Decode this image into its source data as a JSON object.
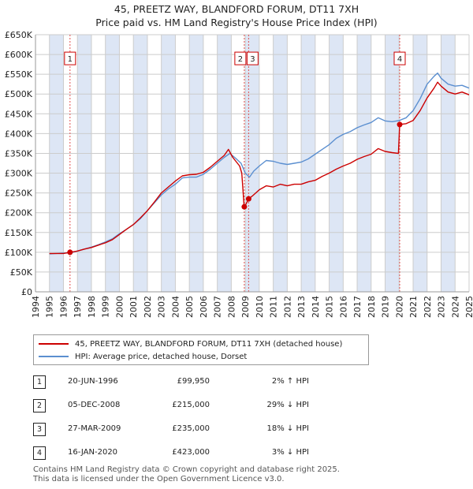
{
  "title": {
    "line1": "45, PREETZ WAY, BLANDFORD FORUM, DT11 7XH",
    "line2": "Price paid vs. HM Land Registry's House Price Index (HPI)"
  },
  "colors": {
    "property": "#cc0000",
    "hpi": "#5b8fd0",
    "marker_line": "#e05050",
    "shade": "#dde6f5",
    "grid": "#cccccc"
  },
  "chart_data": {
    "type": "line",
    "title": "45, PREETZ WAY, BLANDFORD FORUM, DT11 7XH - Price paid vs. HM Land Registry's House Price Index (HPI)",
    "xlabel": "",
    "ylabel": "",
    "xlim": [
      1994,
      2025
    ],
    "ylim": [
      0,
      650000
    ],
    "x_ticks": [
      "1994",
      "1995",
      "1996",
      "1997",
      "1998",
      "1999",
      "2000",
      "2001",
      "2002",
      "2003",
      "2004",
      "2005",
      "2006",
      "2007",
      "2008",
      "2009",
      "2010",
      "2011",
      "2012",
      "2013",
      "2014",
      "2015",
      "2016",
      "2017",
      "2018",
      "2019",
      "2020",
      "2021",
      "2022",
      "2023",
      "2024",
      "2025"
    ],
    "y_ticks": [
      {
        "value": 0,
        "label": "£0"
      },
      {
        "value": 50000,
        "label": "£50K"
      },
      {
        "value": 100000,
        "label": "£100K"
      },
      {
        "value": 150000,
        "label": "£150K"
      },
      {
        "value": 200000,
        "label": "£200K"
      },
      {
        "value": 250000,
        "label": "£250K"
      },
      {
        "value": 300000,
        "label": "£300K"
      },
      {
        "value": 350000,
        "label": "£350K"
      },
      {
        "value": 400000,
        "label": "£400K"
      },
      {
        "value": 450000,
        "label": "£450K"
      },
      {
        "value": 500000,
        "label": "£500K"
      },
      {
        "value": 550000,
        "label": "£550K"
      },
      {
        "value": 600000,
        "label": "£600K"
      },
      {
        "value": 650000,
        "label": "£650K"
      }
    ],
    "grid": true,
    "shaded_years": [
      1995,
      1997,
      1999,
      2001,
      2003,
      2005,
      2007,
      2009,
      2011,
      2013,
      2015,
      2017,
      2019,
      2021,
      2023
    ],
    "series": [
      {
        "name": "45, PREETZ WAY, BLANDFORD FORUM, DT11 7XH (detached house)",
        "color": "#cc0000",
        "points": [
          [
            1995.0,
            97000
          ],
          [
            1996.0,
            97000
          ],
          [
            1996.47,
            99950
          ],
          [
            1997.0,
            103000
          ],
          [
            1997.5,
            108000
          ],
          [
            1998.0,
            112000
          ],
          [
            1998.5,
            118000
          ],
          [
            1999.0,
            124000
          ],
          [
            1999.5,
            132000
          ],
          [
            2000.0,
            145000
          ],
          [
            2000.5,
            158000
          ],
          [
            2001.0,
            170000
          ],
          [
            2001.5,
            187000
          ],
          [
            2002.0,
            205000
          ],
          [
            2002.5,
            227000
          ],
          [
            2003.0,
            250000
          ],
          [
            2003.5,
            265000
          ],
          [
            2004.0,
            280000
          ],
          [
            2004.5,
            293000
          ],
          [
            2005.0,
            296000
          ],
          [
            2005.5,
            297000
          ],
          [
            2006.0,
            302000
          ],
          [
            2006.5,
            315000
          ],
          [
            2007.0,
            330000
          ],
          [
            2007.5,
            345000
          ],
          [
            2007.8,
            360000
          ],
          [
            2008.1,
            340000
          ],
          [
            2008.6,
            318000
          ],
          [
            2008.75,
            300000
          ],
          [
            2008.92,
            215000
          ],
          [
            2009.0,
            218000
          ],
          [
            2009.24,
            235000
          ],
          [
            2009.5,
            242000
          ],
          [
            2010.0,
            258000
          ],
          [
            2010.5,
            268000
          ],
          [
            2011.0,
            265000
          ],
          [
            2011.5,
            272000
          ],
          [
            2012.0,
            268000
          ],
          [
            2012.5,
            272000
          ],
          [
            2013.0,
            272000
          ],
          [
            2013.5,
            278000
          ],
          [
            2014.0,
            282000
          ],
          [
            2014.5,
            292000
          ],
          [
            2015.0,
            300000
          ],
          [
            2015.5,
            310000
          ],
          [
            2016.0,
            318000
          ],
          [
            2016.5,
            325000
          ],
          [
            2017.0,
            335000
          ],
          [
            2017.5,
            342000
          ],
          [
            2018.0,
            348000
          ],
          [
            2018.5,
            362000
          ],
          [
            2019.0,
            355000
          ],
          [
            2019.5,
            352000
          ],
          [
            2019.95,
            350000
          ],
          [
            2020.04,
            423000
          ],
          [
            2020.5,
            425000
          ],
          [
            2021.0,
            433000
          ],
          [
            2021.5,
            458000
          ],
          [
            2022.0,
            490000
          ],
          [
            2022.5,
            515000
          ],
          [
            2022.75,
            530000
          ],
          [
            2023.0,
            520000
          ],
          [
            2023.5,
            505000
          ],
          [
            2024.0,
            500000
          ],
          [
            2024.5,
            505000
          ],
          [
            2025.0,
            498000
          ]
        ]
      },
      {
        "name": "HPI: Average price, detached house, Dorset",
        "color": "#5b8fd0",
        "points": [
          [
            1995.0,
            96000
          ],
          [
            1996.0,
            98000
          ],
          [
            1996.47,
            98000
          ],
          [
            1997.0,
            103000
          ],
          [
            1997.5,
            108000
          ],
          [
            1998.0,
            113000
          ],
          [
            1998.5,
            119000
          ],
          [
            1999.0,
            126000
          ],
          [
            1999.5,
            134000
          ],
          [
            2000.0,
            147000
          ],
          [
            2000.5,
            158000
          ],
          [
            2001.0,
            170000
          ],
          [
            2001.5,
            185000
          ],
          [
            2002.0,
            205000
          ],
          [
            2002.5,
            225000
          ],
          [
            2003.0,
            245000
          ],
          [
            2003.5,
            260000
          ],
          [
            2004.0,
            272000
          ],
          [
            2004.5,
            288000
          ],
          [
            2005.0,
            290000
          ],
          [
            2005.5,
            290000
          ],
          [
            2006.0,
            297000
          ],
          [
            2006.5,
            310000
          ],
          [
            2007.0,
            325000
          ],
          [
            2007.5,
            340000
          ],
          [
            2007.9,
            350000
          ],
          [
            2008.3,
            338000
          ],
          [
            2008.7,
            325000
          ],
          [
            2009.0,
            300000
          ],
          [
            2009.3,
            290000
          ],
          [
            2009.6,
            305000
          ],
          [
            2010.0,
            318000
          ],
          [
            2010.5,
            332000
          ],
          [
            2011.0,
            330000
          ],
          [
            2011.5,
            325000
          ],
          [
            2012.0,
            322000
          ],
          [
            2012.5,
            325000
          ],
          [
            2013.0,
            328000
          ],
          [
            2013.5,
            336000
          ],
          [
            2014.0,
            348000
          ],
          [
            2014.5,
            360000
          ],
          [
            2015.0,
            372000
          ],
          [
            2015.5,
            388000
          ],
          [
            2016.0,
            398000
          ],
          [
            2016.5,
            405000
          ],
          [
            2017.0,
            415000
          ],
          [
            2017.5,
            422000
          ],
          [
            2018.0,
            428000
          ],
          [
            2018.5,
            440000
          ],
          [
            2019.0,
            432000
          ],
          [
            2019.5,
            430000
          ],
          [
            2020.0,
            433000
          ],
          [
            2020.5,
            440000
          ],
          [
            2021.0,
            458000
          ],
          [
            2021.5,
            488000
          ],
          [
            2022.0,
            525000
          ],
          [
            2022.5,
            545000
          ],
          [
            2022.75,
            553000
          ],
          [
            2023.0,
            540000
          ],
          [
            2023.5,
            525000
          ],
          [
            2024.0,
            520000
          ],
          [
            2024.5,
            522000
          ],
          [
            2025.0,
            515000
          ]
        ]
      }
    ],
    "sales": [
      {
        "num": "1",
        "x": 1996.47,
        "price": 99950,
        "date": "20-JUN-1996",
        "price_label": "£99,950",
        "hpi_note": "2% ↑ HPI",
        "box_value": 590000
      },
      {
        "num": "2",
        "x": 2008.93,
        "price": 215000,
        "date": "05-DEC-2008",
        "price_label": "£215,000",
        "hpi_note": "29% ↓ HPI",
        "box_value": 590000
      },
      {
        "num": "3",
        "x": 2009.24,
        "price": 235000,
        "date": "27-MAR-2009",
        "price_label": "£235,000",
        "hpi_note": "18% ↓ HPI",
        "box_value": 590000
      },
      {
        "num": "4",
        "x": 2020.04,
        "price": 423000,
        "date": "16-JAN-2020",
        "price_label": "£423,000",
        "hpi_note": "3% ↓ HPI",
        "box_value": 590000
      }
    ]
  },
  "legend": {
    "property": "45, PREETZ WAY, BLANDFORD FORUM, DT11 7XH (detached house)",
    "hpi": "HPI: Average price, detached house, Dorset"
  },
  "footer": {
    "line1": "Contains HM Land Registry data © Crown copyright and database right 2025.",
    "line2": "This data is licensed under the Open Government Licence v3.0."
  }
}
